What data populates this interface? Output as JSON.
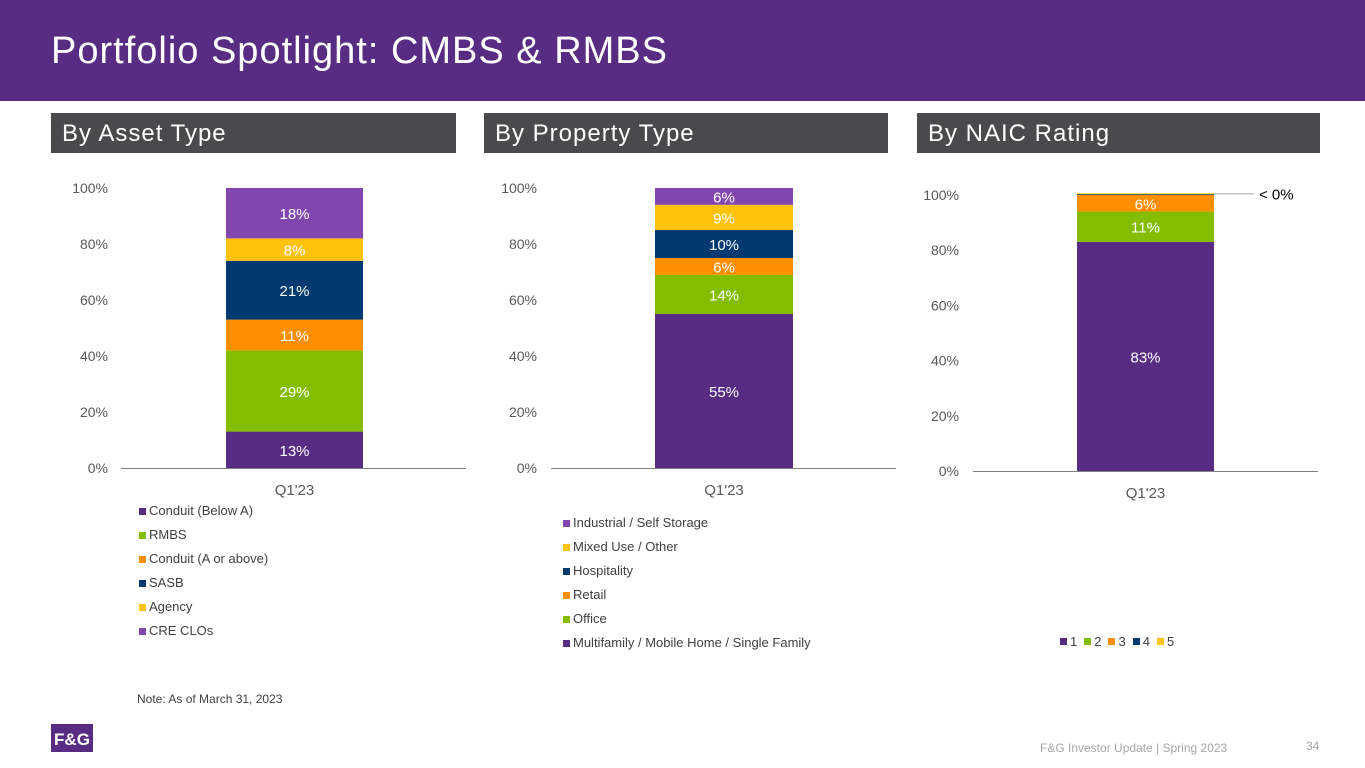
{
  "header": {
    "title": "Portfolio Spotlight:  CMBS & RMBS"
  },
  "sections": [
    {
      "label": "By Asset Type"
    },
    {
      "label": "By Property Type"
    },
    {
      "label": "By NAIC Rating"
    }
  ],
  "chart_data": [
    {
      "type": "bar",
      "stacked": true,
      "title": "By Asset Type",
      "categories": [
        "Q1'23"
      ],
      "ylim": [
        0,
        100
      ],
      "y_ticks": [
        "0%",
        "20%",
        "40%",
        "60%",
        "80%",
        "100%"
      ],
      "series": [
        {
          "name": "Conduit (Below A)",
          "values": [
            13
          ],
          "label": "13%",
          "color": "#582c83"
        },
        {
          "name": "RMBS",
          "values": [
            29
          ],
          "label": "29%",
          "color": "#84bd00"
        },
        {
          "name": "Conduit (A or above)",
          "values": [
            11
          ],
          "label": "11%",
          "color": "#ff8f00"
        },
        {
          "name": "SASB",
          "values": [
            21
          ],
          "label": "21%",
          "color": "#003a70"
        },
        {
          "name": "Agency",
          "values": [
            8
          ],
          "label": "8%",
          "color": "#ffc20e"
        },
        {
          "name": "CRE CLOs",
          "values": [
            18
          ],
          "label": "18%",
          "color": "#8246af"
        }
      ]
    },
    {
      "type": "bar",
      "stacked": true,
      "title": "By Property Type",
      "categories": [
        "Q1'23"
      ],
      "ylim": [
        0,
        100
      ],
      "y_ticks": [
        "0%",
        "20%",
        "40%",
        "60%",
        "80%",
        "100%"
      ],
      "series": [
        {
          "name": "Multifamily / Mobile Home / Single Family",
          "values": [
            55
          ],
          "label": "55%",
          "color": "#582c83"
        },
        {
          "name": "Office",
          "values": [
            14
          ],
          "label": "14%",
          "color": "#84bd00"
        },
        {
          "name": "Retail",
          "values": [
            6
          ],
          "label": "6%",
          "color": "#ff8f00"
        },
        {
          "name": "Hospitality",
          "values": [
            10
          ],
          "label": "10%",
          "color": "#003a70"
        },
        {
          "name": "Mixed Use / Other",
          "values": [
            9
          ],
          "label": "9%",
          "color": "#ffc20e"
        },
        {
          "name": "Industrial / Self Storage",
          "values": [
            6
          ],
          "label": "6%",
          "color": "#8246af"
        }
      ]
    },
    {
      "type": "bar",
      "stacked": true,
      "title": "By NAIC Rating",
      "categories": [
        "Q1'23"
      ],
      "ylim": [
        0,
        100
      ],
      "y_ticks": [
        "0%",
        "20%",
        "40%",
        "60%",
        "80%",
        "100%"
      ],
      "series": [
        {
          "name": "1",
          "values": [
            83
          ],
          "label": "83%",
          "color": "#582c83"
        },
        {
          "name": "2",
          "values": [
            11
          ],
          "label": "11%",
          "color": "#84bd00"
        },
        {
          "name": "3",
          "values": [
            6
          ],
          "label": "6%",
          "color": "#ff8f00"
        },
        {
          "name": "4",
          "values": [
            0.3
          ],
          "label": "",
          "color": "#003a70"
        },
        {
          "name": "5",
          "values": [
            0.3
          ],
          "label": "",
          "color": "#ffc20e"
        }
      ],
      "annotation": "< 0%"
    }
  ],
  "note": "Note: As of March 31, 2023",
  "footer": {
    "text": "F&G Investor Update | Spring 2023",
    "page": "34"
  },
  "logo": {
    "text": "F&G"
  }
}
